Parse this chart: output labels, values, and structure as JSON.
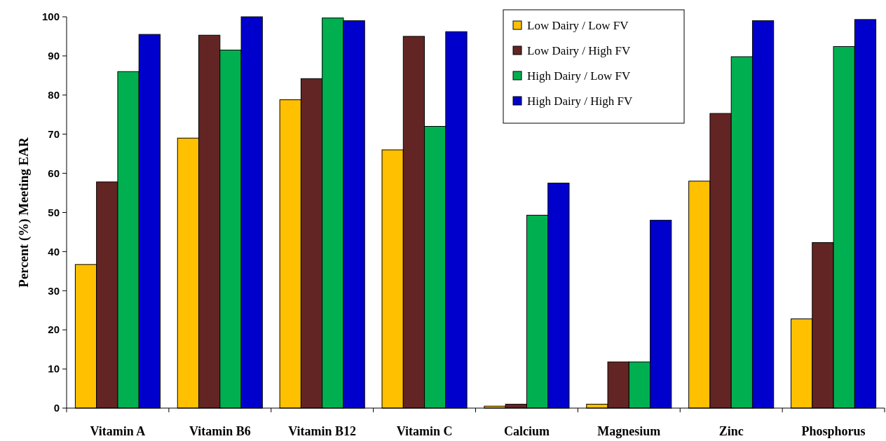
{
  "chart_data": {
    "type": "bar",
    "ylabel": "Percent (%) Meeting EAR",
    "categories": [
      "Vitamin A",
      "Vitamin B6",
      "Vitamin B12",
      "Vitamin C",
      "Calcium",
      "Magnesium",
      "Zinc",
      "Phosphorus"
    ],
    "series": [
      {
        "name": "Low Dairy / Low FV",
        "color": "#ffc000",
        "values": [
          36.7,
          69,
          78.8,
          66,
          0.5,
          1,
          58,
          22.8
        ]
      },
      {
        "name": "Low Dairy / High FV",
        "color": "#632523",
        "values": [
          57.8,
          95.3,
          84.2,
          95,
          1,
          11.8,
          75.3,
          42.3
        ]
      },
      {
        "name": "High Dairy / Low FV",
        "color": "#00b050",
        "values": [
          86,
          91.5,
          99.7,
          72,
          49.3,
          11.8,
          89.8,
          92.4
        ]
      },
      {
        "name": "High Dairy / High FV",
        "color": "#0000cc",
        "values": [
          95.5,
          100,
          99,
          96.2,
          57.5,
          48,
          99,
          99.3
        ]
      }
    ],
    "ylim": [
      0,
      100
    ],
    "yticks": [
      0,
      10,
      20,
      30,
      40,
      50,
      60,
      70,
      80,
      90,
      100
    ],
    "grid": false,
    "legend": "top right"
  }
}
